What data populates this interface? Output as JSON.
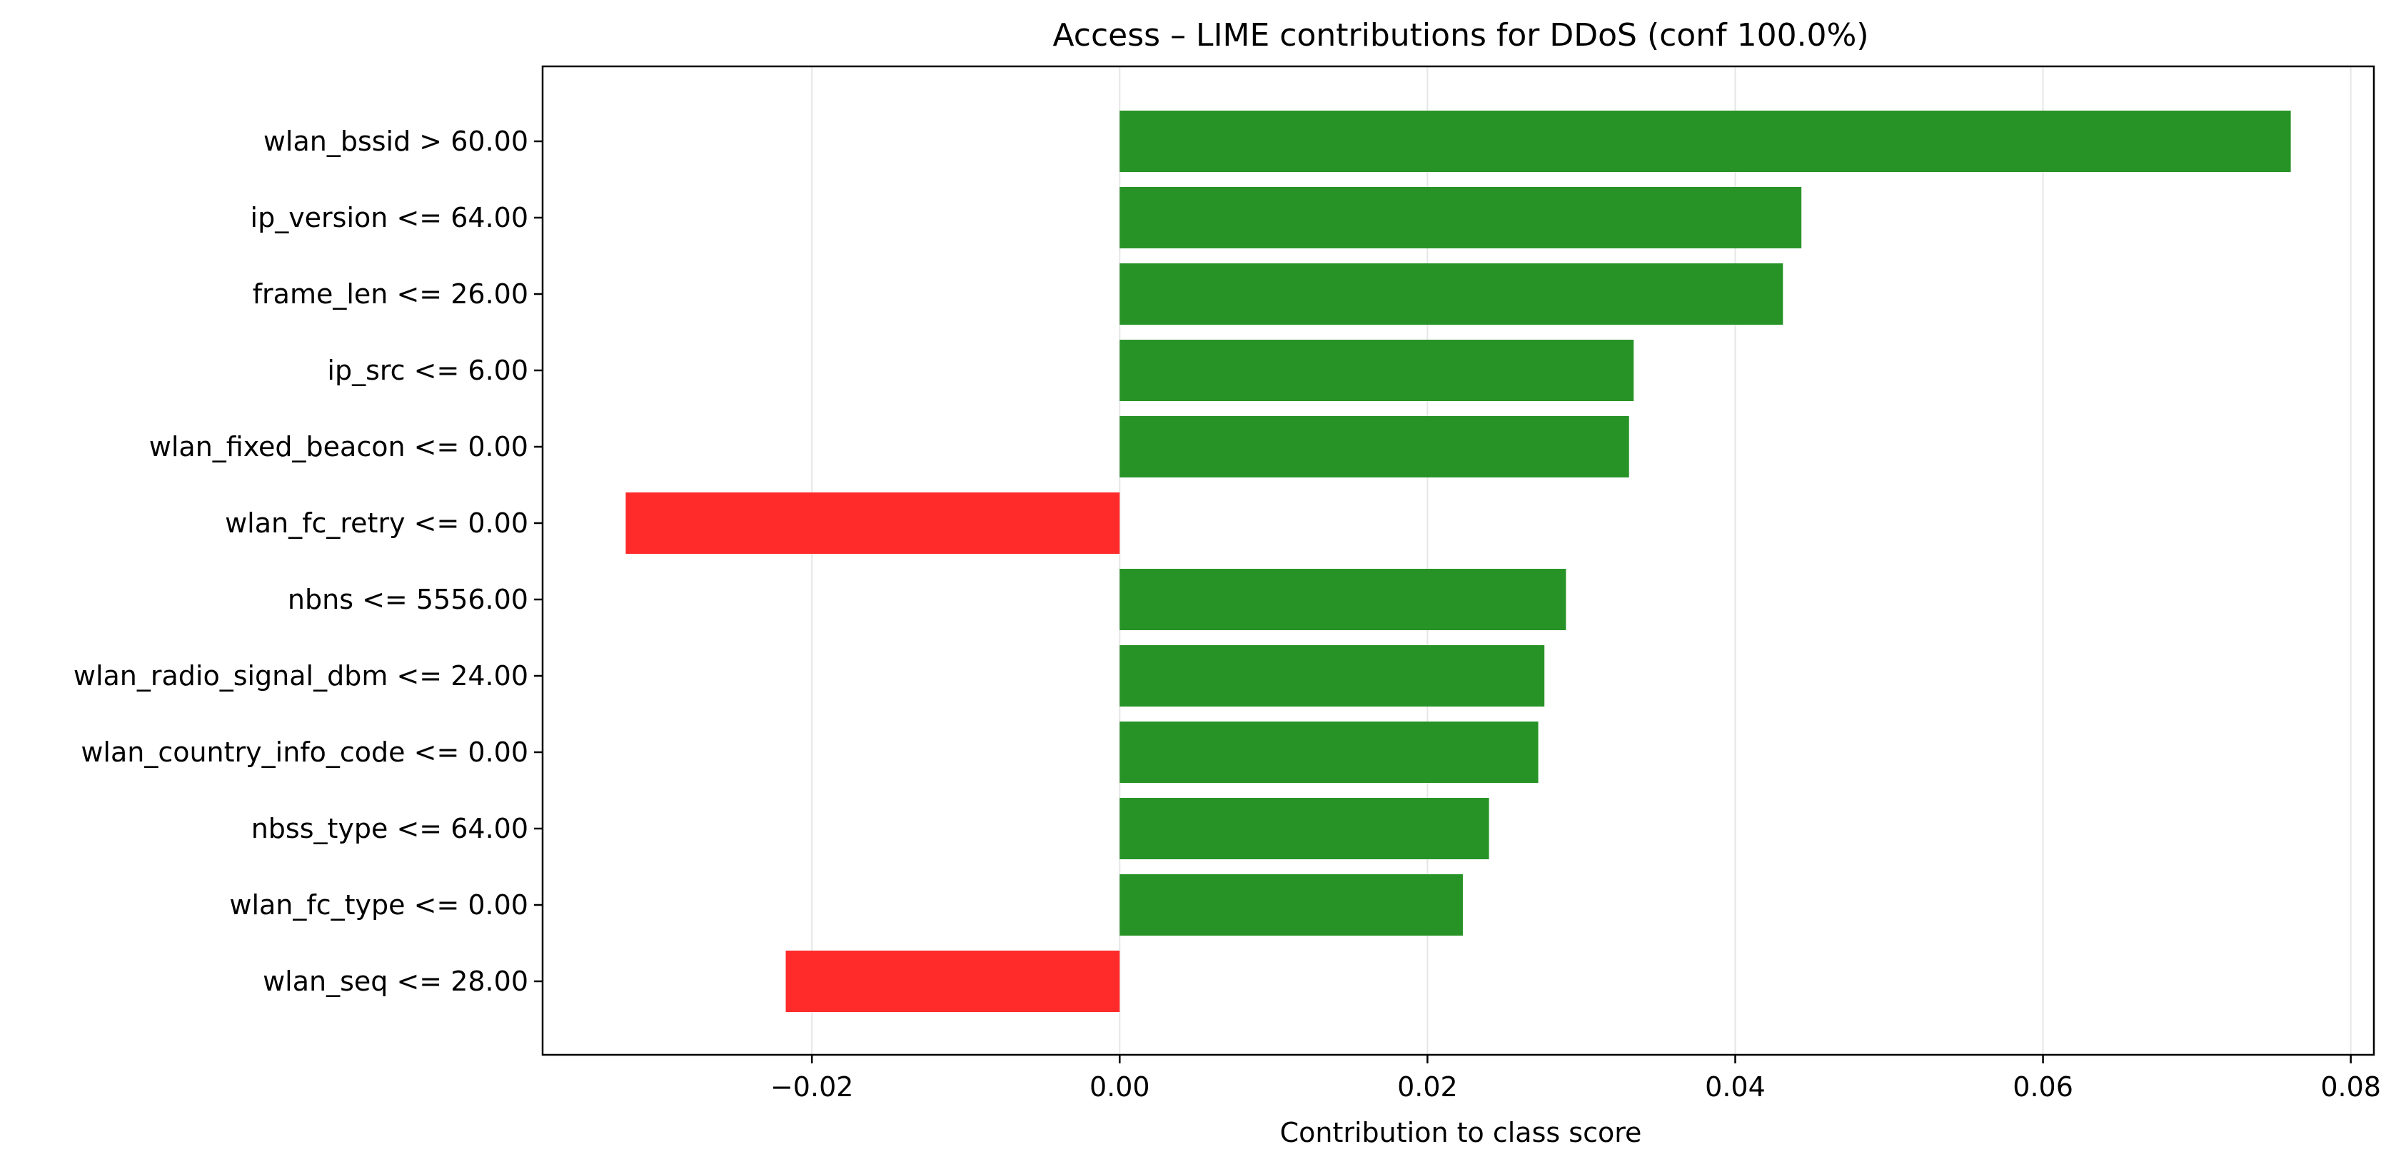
{
  "chart_data": {
    "type": "bar",
    "orientation": "horizontal",
    "title": "Access – LIME contributions for DDoS (conf 100.0%)",
    "xlabel": "Contribution to class score",
    "ylabel": "",
    "xlim": [
      -0.0375,
      0.0815
    ],
    "grid": "vertical",
    "positive_color": "#279327",
    "negative_color": "#ff2a2a",
    "categories": [
      "wlan_bssid > 60.00",
      "ip_version <= 64.00",
      "frame_len <= 26.00",
      "ip_src <= 6.00",
      "wlan_fixed_beacon <= 0.00",
      "wlan_fc_retry <= 0.00",
      "nbns <= 5556.00",
      "wlan_radio_signal_dbm <= 24.00",
      "wlan_country_info_code <= 0.00",
      "nbss_type <= 64.00",
      "wlan_fc_type <= 0.00",
      "wlan_seq <= 28.00"
    ],
    "values": [
      0.0761,
      0.0443,
      0.0431,
      0.0334,
      0.0331,
      -0.0321,
      0.029,
      0.0276,
      0.0272,
      0.024,
      0.0223,
      -0.0217
    ],
    "xticks": [
      -0.02,
      0.0,
      0.02,
      0.04,
      0.06,
      0.08
    ],
    "xtick_labels": [
      "−0.02",
      "0.00",
      "0.02",
      "0.04",
      "0.06",
      "0.08"
    ]
  }
}
